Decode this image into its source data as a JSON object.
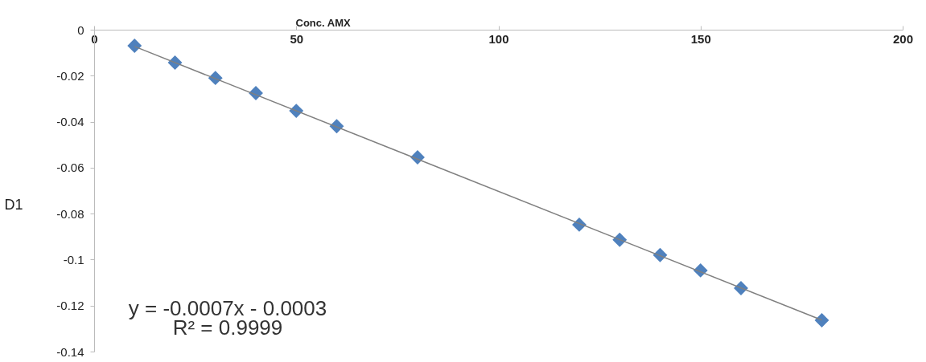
{
  "chart_data": {
    "type": "scatter",
    "xlabel": "Conc. AMX",
    "ylabel": "D1",
    "x": [
      10,
      20,
      30,
      40,
      50,
      60,
      80,
      120,
      130,
      140,
      150,
      160,
      180
    ],
    "series": [
      {
        "color": "#4f81bd",
        "marker": "diamond",
        "values": [
          -0.007,
          -0.0143,
          -0.021,
          -0.0276,
          -0.0353,
          -0.042,
          -0.0555,
          -0.0848,
          -0.0914,
          -0.098,
          -0.1047,
          -0.1124,
          -0.1264
        ]
      },
      {
        "type": "line",
        "color": "#808080",
        "marker": "none",
        "x": [
          10,
          180
        ],
        "values": [
          -0.0073,
          -0.1263
        ]
      }
    ],
    "xlim": [
      0,
      200
    ],
    "xticks": [
      0,
      50,
      100,
      150,
      200
    ],
    "ylim": [
      -0.14,
      0
    ],
    "yticks": [
      0,
      -0.02,
      -0.04,
      -0.06,
      -0.08,
      -0.1,
      -0.12,
      -0.14
    ],
    "grid": false,
    "annotations": [
      "y = -0.0007x - 0.0003",
      "R² = 0.9999"
    ]
  }
}
